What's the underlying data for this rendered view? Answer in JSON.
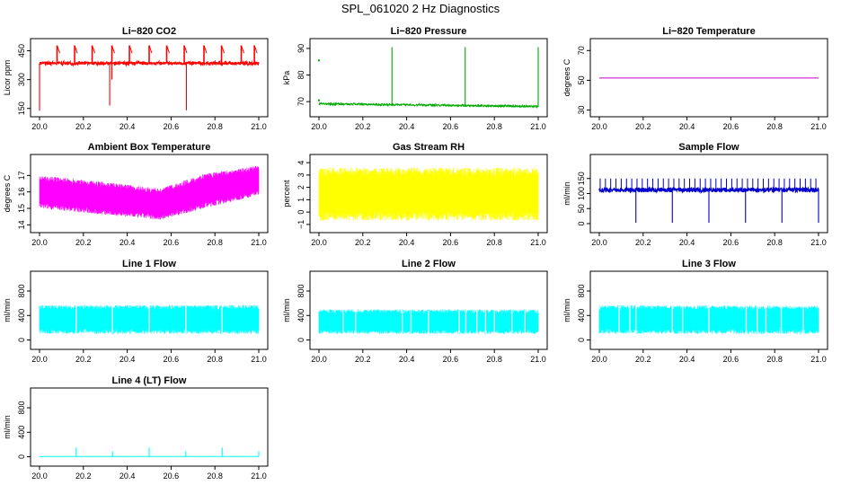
{
  "figure": {
    "title": "SPL_061020  2 Hz Diagnostics"
  },
  "chart_data": [
    {
      "id": "li820-co2",
      "type": "line",
      "title": "Li−820 CO2",
      "xlabel": "",
      "ylabel": "Licor ppm",
      "xlim": [
        20.0,
        21.0
      ],
      "ylim": [
        130,
        490
      ],
      "xticks": [
        20.0,
        20.2,
        20.4,
        20.6,
        20.8,
        21.0
      ],
      "xtick_labels": [
        "20.0",
        "20.2",
        "20.4",
        "20.6",
        "20.8",
        "21.0"
      ],
      "yticks": [
        150,
        300,
        450
      ],
      "ytick_labels": [
        "150",
        "300",
        "450"
      ],
      "color": "#ff0000",
      "pattern": "co2",
      "baseline": 385,
      "noise": {
        "lo": 6,
        "hi": 10
      },
      "spikes_up": [
        [
          20.08,
          478
        ],
        [
          20.16,
          478
        ],
        [
          20.24,
          478
        ],
        [
          20.33,
          478
        ],
        [
          20.41,
          478
        ],
        [
          20.5,
          478
        ],
        [
          20.58,
          478
        ],
        [
          20.66,
          478
        ],
        [
          20.75,
          478
        ],
        [
          20.83,
          478
        ],
        [
          20.92,
          478
        ],
        [
          20.98,
          478
        ]
      ],
      "spikes_down": [
        [
          20.0,
          138
        ],
        [
          20.32,
          165
        ],
        [
          20.67,
          140
        ],
        [
          20.33,
          300
        ]
      ]
    },
    {
      "id": "li820-pressure",
      "type": "line",
      "title": "Li−820 Pressure",
      "xlabel": "",
      "ylabel": "kPa",
      "xlim": [
        20.0,
        21.0
      ],
      "ylim": [
        66,
        92
      ],
      "xticks": [
        20.0,
        20.2,
        20.4,
        20.6,
        20.8,
        21.0
      ],
      "xtick_labels": [
        "20.0",
        "20.2",
        "20.4",
        "20.6",
        "20.8",
        "21.0"
      ],
      "yticks": [
        70,
        80,
        90
      ],
      "ytick_labels": [
        "70",
        "80",
        "90"
      ],
      "color": "#00aa00",
      "pattern": "pressure",
      "start": 69.2,
      "end": 68.2,
      "noise": {
        "lo": 0.4,
        "hi": 0.4
      },
      "spikes_up": [
        [
          20.333,
          90.5
        ],
        [
          20.667,
          90.5
        ],
        [
          21.0,
          90.5
        ]
      ],
      "isolated": [
        [
          20.0,
          85.5
        ],
        [
          20.0,
          70.5
        ]
      ]
    },
    {
      "id": "li820-temperature",
      "type": "line",
      "title": "Li−820 Temperature",
      "xlabel": "",
      "ylabel": "degrees C",
      "xlim": [
        20.0,
        21.0
      ],
      "ylim": [
        28.5,
        75
      ],
      "xticks": [
        20.0,
        20.2,
        20.4,
        20.6,
        20.8,
        21.0
      ],
      "xtick_labels": [
        "20.0",
        "20.2",
        "20.4",
        "20.6",
        "20.8",
        "21.0"
      ],
      "yticks": [
        30,
        50,
        70
      ],
      "ytick_labels": [
        "30",
        "50",
        "70"
      ],
      "color": "#cc00cc",
      "pattern": "flat",
      "value": 51.5
    },
    {
      "id": "ambient-box-temperature",
      "type": "line",
      "title": "Ambient Box Temperature",
      "xlabel": "",
      "ylabel": "degrees C",
      "xlim": [
        20.0,
        21.0
      ],
      "ylim": [
        13.8,
        18.0
      ],
      "xticks": [
        20.0,
        20.2,
        20.4,
        20.6,
        20.8,
        21.0
      ],
      "xtick_labels": [
        "20.0",
        "20.2",
        "20.4",
        "20.6",
        "20.8",
        "21.0"
      ],
      "yticks": [
        14,
        15,
        16,
        17
      ],
      "ytick_labels": [
        "14",
        "15",
        "16",
        "17"
      ],
      "color": "#ff00ff",
      "pattern": "band",
      "band_upper": [
        [
          20.0,
          17.0
        ],
        [
          20.3,
          16.6
        ],
        [
          20.55,
          16.2
        ],
        [
          20.75,
          17.1
        ],
        [
          21.0,
          17.6
        ]
      ],
      "band_lower": [
        [
          20.0,
          15.0
        ],
        [
          20.3,
          14.6
        ],
        [
          20.55,
          14.3
        ],
        [
          20.75,
          15.0
        ],
        [
          21.0,
          15.8
        ]
      ]
    },
    {
      "id": "gas-stream-rh",
      "type": "line",
      "title": "Gas Stream RH",
      "xlabel": "",
      "ylabel": "percent",
      "xlim": [
        20.0,
        21.0
      ],
      "ylim": [
        -1.3,
        4.3
      ],
      "xticks": [
        20.0,
        20.2,
        20.4,
        20.6,
        20.8,
        21.0
      ],
      "xtick_labels": [
        "20.0",
        "20.2",
        "20.4",
        "20.6",
        "20.8",
        "21.0"
      ],
      "yticks": [
        -1,
        0,
        1,
        2,
        3,
        4
      ],
      "ytick_labels": [
        "−1",
        "0",
        "1",
        "2",
        "3",
        "4"
      ],
      "color": "#ffff00",
      "pattern": "band",
      "band_upper": [
        [
          20.0,
          3.6
        ],
        [
          21.0,
          3.6
        ]
      ],
      "band_lower": [
        [
          20.0,
          -0.7
        ],
        [
          21.0,
          -0.7
        ]
      ]
    },
    {
      "id": "sample-flow",
      "type": "line",
      "title": "Sample Flow",
      "xlabel": "",
      "ylabel": "ml/min",
      "xlim": [
        20.0,
        21.0
      ],
      "ylim": [
        -15,
        215
      ],
      "xticks": [
        20.0,
        20.2,
        20.4,
        20.6,
        20.8,
        21.0
      ],
      "xtick_labels": [
        "20.0",
        "20.2",
        "20.4",
        "20.6",
        "20.8",
        "21.0"
      ],
      "yticks": [
        0,
        50,
        100,
        150
      ],
      "ytick_labels": [
        "0",
        "50",
        "100",
        "150"
      ],
      "color": "#0000cc",
      "pattern": "flow",
      "baseline": 112,
      "noise": {
        "lo": 8,
        "hi": 8
      },
      "periodic_spike": {
        "every": 0.024,
        "to": 150
      },
      "spikes_down": [
        [
          20.167,
          3
        ],
        [
          20.333,
          3
        ],
        [
          20.5,
          3
        ],
        [
          20.667,
          3
        ],
        [
          20.833,
          3
        ],
        [
          21.0,
          3
        ]
      ]
    },
    {
      "id": "line-1-flow",
      "type": "line",
      "title": "Line 1 Flow",
      "xlabel": "",
      "ylabel": "ml/min",
      "xlim": [
        20.0,
        21.0
      ],
      "ylim": [
        -80,
        1050
      ],
      "xticks": [
        20.0,
        20.2,
        20.4,
        20.6,
        20.8,
        21.0
      ],
      "xtick_labels": [
        "20.0",
        "20.2",
        "20.4",
        "20.6",
        "20.8",
        "21.0"
      ],
      "yticks": [
        0,
        400,
        800
      ],
      "ytick_labels": [
        "0",
        "400",
        "800"
      ],
      "color": "#00ffff",
      "pattern": "band",
      "band_upper": [
        [
          20.0,
          570
        ],
        [
          21.0,
          570
        ]
      ],
      "band_lower": [
        [
          20.0,
          100
        ],
        [
          21.0,
          100
        ]
      ],
      "gaps": [
        20.167,
        20.333,
        20.5,
        20.667,
        20.833
      ]
    },
    {
      "id": "line-2-flow",
      "type": "line",
      "title": "Line 2 Flow",
      "xlabel": "",
      "ylabel": "ml/min",
      "xlim": [
        20.0,
        21.0
      ],
      "ylim": [
        -80,
        1050
      ],
      "xticks": [
        20.0,
        20.2,
        20.4,
        20.6,
        20.8,
        21.0
      ],
      "xtick_labels": [
        "20.0",
        "20.2",
        "20.4",
        "20.6",
        "20.8",
        "21.0"
      ],
      "yticks": [
        0,
        400,
        800
      ],
      "ytick_labels": [
        "0",
        "400",
        "800"
      ],
      "color": "#00ffff",
      "pattern": "band",
      "band_upper": [
        [
          20.0,
          500
        ],
        [
          21.0,
          500
        ]
      ],
      "band_lower": [
        [
          20.0,
          100
        ],
        [
          21.0,
          100
        ]
      ],
      "gaps": [
        20.11,
        20.167,
        20.38,
        20.42,
        20.5,
        20.64,
        20.67,
        20.72,
        20.76,
        20.8,
        20.88,
        20.94
      ]
    },
    {
      "id": "line-3-flow",
      "type": "line",
      "title": "Line 3 Flow",
      "xlabel": "",
      "ylabel": "ml/min",
      "xlim": [
        20.0,
        21.0
      ],
      "ylim": [
        -80,
        1050
      ],
      "xticks": [
        20.0,
        20.2,
        20.4,
        20.6,
        20.8,
        21.0
      ],
      "xtick_labels": [
        "20.0",
        "20.2",
        "20.4",
        "20.6",
        "20.8",
        "21.0"
      ],
      "yticks": [
        0,
        400,
        800
      ],
      "ytick_labels": [
        "0",
        "400",
        "800"
      ],
      "color": "#00ffff",
      "pattern": "band",
      "band_upper": [
        [
          20.0,
          570
        ],
        [
          21.0,
          560
        ]
      ],
      "band_lower": [
        [
          20.0,
          100
        ],
        [
          21.0,
          100
        ]
      ],
      "gaps": [
        20.09,
        20.14,
        20.167,
        20.333,
        20.38,
        20.5,
        20.67,
        20.72,
        20.76,
        20.83,
        20.93
      ]
    },
    {
      "id": "line-4-lt-flow",
      "type": "line",
      "title": "Line 4 (LT) Flow",
      "xlabel": "",
      "ylabel": "ml/min",
      "xlim": [
        20.0,
        21.0
      ],
      "ylim": [
        -80,
        1050
      ],
      "xticks": [
        20.0,
        20.2,
        20.4,
        20.6,
        20.8,
        21.0
      ],
      "xtick_labels": [
        "20.0",
        "20.2",
        "20.4",
        "20.6",
        "20.8",
        "21.0"
      ],
      "yticks": [
        0,
        400,
        800
      ],
      "ytick_labels": [
        "0",
        "400",
        "800"
      ],
      "color": "#00ffff",
      "pattern": "flat",
      "value": 5,
      "spikes_up": [
        [
          20.167,
          150
        ],
        [
          20.333,
          90
        ],
        [
          20.5,
          150
        ],
        [
          20.667,
          90
        ],
        [
          20.833,
          150
        ],
        [
          21.0,
          90
        ]
      ]
    }
  ]
}
